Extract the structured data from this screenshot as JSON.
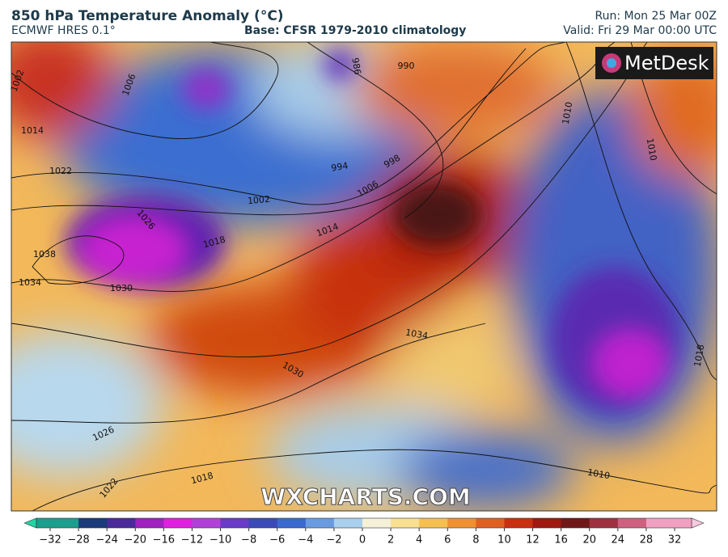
{
  "header": {
    "title": "850 hPa Temperature Anomaly (°C)",
    "model": "ECMWF HRES 0.1°",
    "base": "Base: CFSR 1979-2010 climatology",
    "run": "Run: Mon 25 Mar 00Z",
    "valid": "Valid: Fri 29 Mar 00:00 UTC"
  },
  "logo": "MetDesk",
  "watermark": "WXCHARTS.COM",
  "isobar_labels": [
    1006,
    1002,
    994,
    998,
    990,
    986,
    1010,
    1014,
    1018,
    1022,
    1026,
    1030,
    1034,
    1038,
    1002,
    1006,
    1030,
    1034,
    1026,
    1022,
    1018,
    1010,
    1018,
    1010,
    1014
  ],
  "colorbar": {
    "ticks": [
      {
        "value": -32,
        "label": "−32"
      },
      {
        "value": -28,
        "label": "−28"
      },
      {
        "value": -24,
        "label": "−24"
      },
      {
        "value": -20,
        "label": "−20"
      },
      {
        "value": -16,
        "label": "−16"
      },
      {
        "value": -12,
        "label": "−12"
      },
      {
        "value": -10,
        "label": "−10"
      },
      {
        "value": -8,
        "label": "−8"
      },
      {
        "value": -6,
        "label": "−6"
      },
      {
        "value": -4,
        "label": "−4"
      },
      {
        "value": -2,
        "label": "−2"
      },
      0,
      2,
      4,
      6,
      8,
      10,
      12,
      16,
      20,
      24,
      28,
      32
    ],
    "colors": [
      "#1a9e8e",
      "#1a3a7a",
      "#4a2a9a",
      "#a020c0",
      "#e020e0",
      "#b040d8",
      "#6a3ac8",
      "#3a4ab8",
      "#3a6ad0",
      "#6a9ae0",
      "#a8cfee",
      "#f5f0d8",
      "#f8e090",
      "#f5c050",
      "#f09030",
      "#e06020",
      "#c83010",
      "#a01810",
      "#701818",
      "#a03040",
      "#d06080",
      "#f0a0c0"
    ]
  }
}
